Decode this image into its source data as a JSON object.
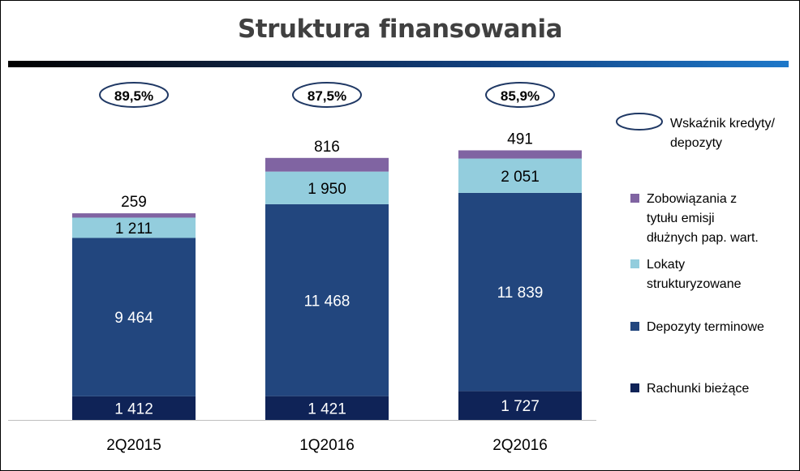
{
  "chart_data": {
    "type": "bar",
    "stacked": true,
    "title": "Struktura finansowania",
    "categories": [
      "2Q2015",
      "1Q2016",
      "2Q2016"
    ],
    "series": [
      {
        "name": "Rachunki bieżące",
        "color": "#0f2357",
        "values": [
          1412,
          1421,
          1727
        ],
        "labels": [
          "1 412",
          "1 421",
          "1 727"
        ]
      },
      {
        "name": "Depozyty terminowe",
        "color": "#22467e",
        "values": [
          9464,
          11468,
          11839
        ],
        "labels": [
          "9 464",
          "11 468",
          "11 839"
        ]
      },
      {
        "name": "Lokaty strukturyzowane",
        "color": "#93cddd",
        "values": [
          1211,
          1950,
          2051
        ],
        "labels": [
          "1 211",
          "1 950",
          "2 051"
        ]
      },
      {
        "name": "Zobowiązania z tytułu emisji dłużnych pap. wart.",
        "color": "#8064a2",
        "values": [
          259,
          816,
          491
        ],
        "labels": [
          "259",
          "816",
          "491"
        ]
      }
    ],
    "ratio": {
      "name": "Wskaźnik kredyty/ depozyty",
      "values": [
        "89,5%",
        "87,5%",
        "85,9%"
      ]
    },
    "legend_position": "right",
    "grid": false
  },
  "legend": {
    "ratio_lines": [
      "Wskaźnik kredyty/",
      "depozyty"
    ],
    "emission_lines": [
      "Zobowiązania z",
      "tytułu emisji",
      "dłużnych pap. wart."
    ],
    "structured_lines": [
      "Lokaty",
      "strukturyzowane"
    ],
    "term_lines": [
      "Depozyty terminowe"
    ],
    "current_lines": [
      "Rachunki bieżące"
    ]
  }
}
